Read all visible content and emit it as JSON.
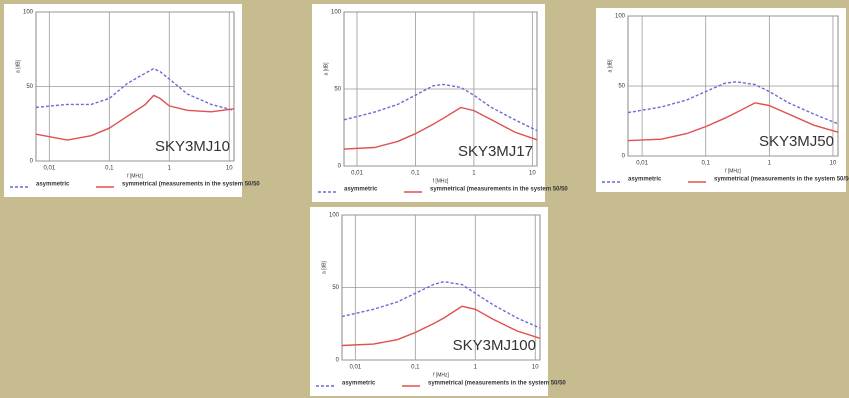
{
  "chart_data": [
    {
      "type": "line",
      "annotation": "SKY3MJ10",
      "y_label": "a [dB]",
      "x_label": "f [MHz]",
      "xscale": "log",
      "grid": true,
      "xlim": [
        0.006,
        12
      ],
      "ylim": [
        0,
        100
      ],
      "xticks": [
        {
          "value": 0.01,
          "label": "0,01"
        },
        {
          "value": 0.1,
          "label": "0,1"
        },
        1,
        10
      ],
      "yticks": [
        0,
        50,
        100
      ],
      "x": [
        0.006,
        0.02,
        0.05,
        0.1,
        0.2,
        0.4,
        0.55,
        0.7,
        1,
        2,
        5,
        12
      ],
      "series": [
        {
          "name": "asymmetric",
          "color": "#6a6ad8",
          "dash": true,
          "values": [
            36,
            38,
            38,
            42,
            52,
            59,
            62,
            60,
            55,
            45,
            38,
            34
          ]
        },
        {
          "name": "symmetrical (measurements in the system 50/50",
          "color": "#e05050",
          "dash": false,
          "values": [
            18,
            14,
            17,
            22,
            30,
            38,
            44,
            42,
            37,
            34,
            33,
            35
          ]
        }
      ]
    },
    {
      "type": "line",
      "annotation": "SKY3MJ17",
      "y_label": "a [dB]",
      "x_label": "f [MHz]",
      "xscale": "log",
      "grid": true,
      "xlim": [
        0.006,
        12
      ],
      "ylim": [
        0,
        100
      ],
      "xticks": [
        {
          "value": 0.01,
          "label": "0,01"
        },
        {
          "value": 0.1,
          "label": "0,1"
        },
        1,
        10
      ],
      "yticks": [
        0,
        50,
        100
      ],
      "x": [
        0.006,
        0.02,
        0.05,
        0.1,
        0.2,
        0.3,
        0.6,
        1,
        2,
        5,
        12
      ],
      "series": [
        {
          "name": "asymmetric",
          "color": "#6a6ad8",
          "dash": true,
          "values": [
            30,
            35,
            40,
            46,
            52,
            53,
            51,
            46,
            38,
            30,
            23
          ]
        },
        {
          "name": "symmetrical (measurements in the system 50/50",
          "color": "#e05050",
          "dash": false,
          "values": [
            11,
            12,
            16,
            21,
            27,
            31,
            38,
            36,
            30,
            22,
            17
          ]
        }
      ]
    },
    {
      "type": "line",
      "annotation": "SKY3MJ50",
      "y_label": "a [dB]",
      "x_label": "f [MHz]",
      "xscale": "log",
      "grid": true,
      "xlim": [
        0.006,
        12
      ],
      "ylim": [
        0,
        100
      ],
      "xticks": [
        {
          "value": 0.01,
          "label": "0,01"
        },
        {
          "value": 0.1,
          "label": "0,1"
        },
        1,
        10
      ],
      "yticks": [
        0,
        50,
        100
      ],
      "x": [
        0.006,
        0.02,
        0.05,
        0.1,
        0.2,
        0.3,
        0.6,
        1,
        2,
        5,
        12
      ],
      "series": [
        {
          "name": "asymmetric",
          "color": "#6a6ad8",
          "dash": true,
          "values": [
            31,
            35,
            40,
            46,
            52,
            53,
            51,
            46,
            38,
            30,
            23
          ]
        },
        {
          "name": "symmetrical (measurements in the system 50/50",
          "color": "#e05050",
          "dash": false,
          "values": [
            11,
            12,
            16,
            21,
            27,
            31,
            38,
            36,
            30,
            22,
            17
          ]
        }
      ]
    },
    {
      "type": "line",
      "annotation": "SKY3MJ100",
      "y_label": "a [dB]",
      "x_label": "f [MHz]",
      "xscale": "log",
      "grid": true,
      "xlim": [
        0.006,
        12
      ],
      "ylim": [
        0,
        100
      ],
      "xticks": [
        {
          "value": 0.01,
          "label": "0,01"
        },
        {
          "value": 0.1,
          "label": "0,1"
        },
        1,
        10
      ],
      "yticks": [
        0,
        50,
        100
      ],
      "x": [
        0.006,
        0.02,
        0.05,
        0.1,
        0.2,
        0.3,
        0.6,
        1,
        2,
        5,
        12
      ],
      "series": [
        {
          "name": "asymmetric",
          "color": "#6a6ad8",
          "dash": true,
          "values": [
            30,
            35,
            40,
            46,
            52,
            54,
            52,
            46,
            38,
            29,
            22
          ]
        },
        {
          "name": "symmetrical (measurements in the system 50/50",
          "color": "#e05050",
          "dash": false,
          "values": [
            10,
            11,
            14,
            19,
            25,
            29,
            37,
            35,
            28,
            20,
            15
          ]
        }
      ]
    }
  ]
}
